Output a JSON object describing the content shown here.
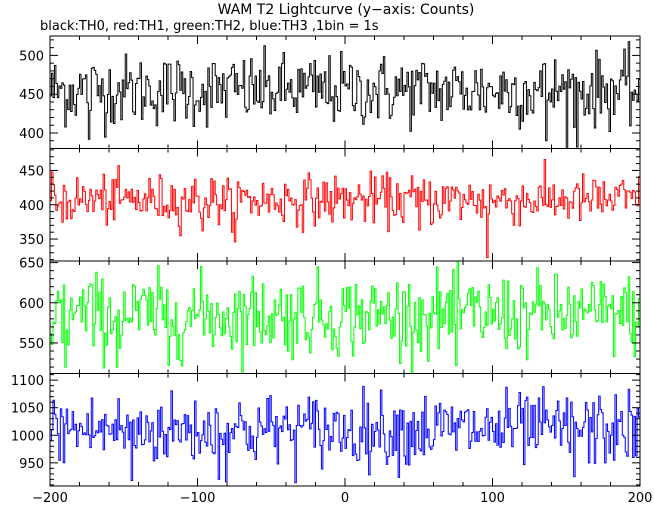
{
  "chart_data": {
    "type": "line",
    "title": "WAM T2 Lightcurve (y−axis: Counts)",
    "subtitle": "black:TH0, red:TH1, green:TH2, blue:TH3 ,1bin = 1s",
    "x_range": [
      -200,
      200
    ],
    "x_ticks": [
      -200,
      -100,
      0,
      100,
      200
    ],
    "x_tick_labels": [
      "−200",
      "−100",
      "0",
      "100",
      "200"
    ],
    "bin_seconds": 1,
    "panels": [
      {
        "name": "TH0",
        "color": "#000000",
        "ylim": [
          380,
          525
        ],
        "y_ticks": [
          400,
          450,
          500
        ],
        "mean": 455,
        "noise": 23,
        "dips": [
          [
            157,
            382
          ],
          [
            -174,
            392
          ],
          [
            136,
            390
          ]
        ]
      },
      {
        "name": "TH1",
        "color": "#ff0000",
        "ylim": [
          318,
          482
        ],
        "y_ticks": [
          350,
          400,
          450
        ],
        "mean": 407,
        "noise": 18,
        "dips": [
          [
            96,
            323
          ],
          [
            -77,
            360
          ],
          [
            -97,
            362
          ],
          [
            50,
            363
          ]
        ]
      },
      {
        "name": "TH2",
        "color": "#00ff00",
        "ylim": [
          512,
          652
        ],
        "y_ticks": [
          550,
          600,
          650
        ],
        "mean": 585,
        "noise": 25,
        "dips": [
          [
            -190,
            520
          ],
          [
            -155,
            520
          ],
          [
            -120,
            522
          ],
          [
            75,
            522
          ]
        ]
      },
      {
        "name": "TH3",
        "color": "#0000ff",
        "ylim": [
          908,
          1112
        ],
        "y_ticks": [
          950,
          1000,
          1050,
          1100
        ],
        "mean": 1010,
        "noise": 33,
        "dips": [
          [
            -145,
            918
          ],
          [
            -86,
            920
          ],
          [
            155,
            925
          ]
        ]
      }
    ]
  }
}
